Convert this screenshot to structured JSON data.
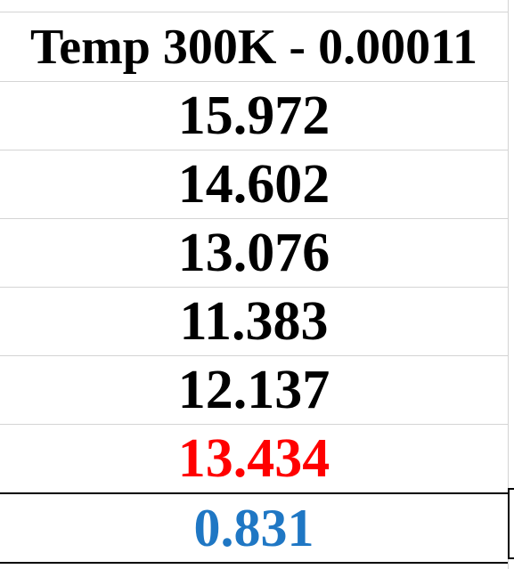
{
  "colors": {
    "default_text": "#000000",
    "highlight_value": "#ff0000",
    "result_value": "#1f77c4",
    "gridline": "#d4d4d4"
  },
  "column": {
    "header": "Temp 300K - 0.00011",
    "values": [
      "15.972",
      "14.602",
      "13.076",
      "11.383",
      "12.137",
      "13.434"
    ],
    "result": "0.831"
  }
}
